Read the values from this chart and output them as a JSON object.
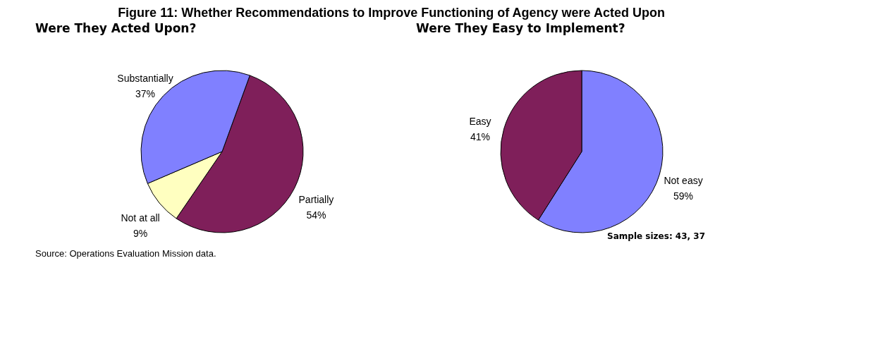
{
  "chart_data": [
    {
      "type": "pie",
      "title": "Figure 11: Whether Recommendations to Improve Functioning of Agency were Acted Upon",
      "subtitle": "Were They Acted Upon?",
      "categories": [
        "Partially",
        "Not at all",
        "Substantially"
      ],
      "values": [
        54,
        9,
        37
      ],
      "value_labels": [
        "54%",
        "9%",
        "37%"
      ],
      "colors": [
        "#7f1f5a",
        "#ffffc0",
        "#8080ff"
      ],
      "legend": false,
      "annotations": [
        "Source: Operations Evaluation Mission data."
      ]
    },
    {
      "type": "pie",
      "title": "Were They Easy to Implement?",
      "categories": [
        "Not easy",
        "Easy"
      ],
      "values": [
        59,
        41
      ],
      "value_labels": [
        "59%",
        "41%"
      ],
      "colors": [
        "#8080ff",
        "#7f1f5a"
      ],
      "legend": false,
      "annotations": [
        "Sample sizes: 43, 37"
      ]
    }
  ]
}
